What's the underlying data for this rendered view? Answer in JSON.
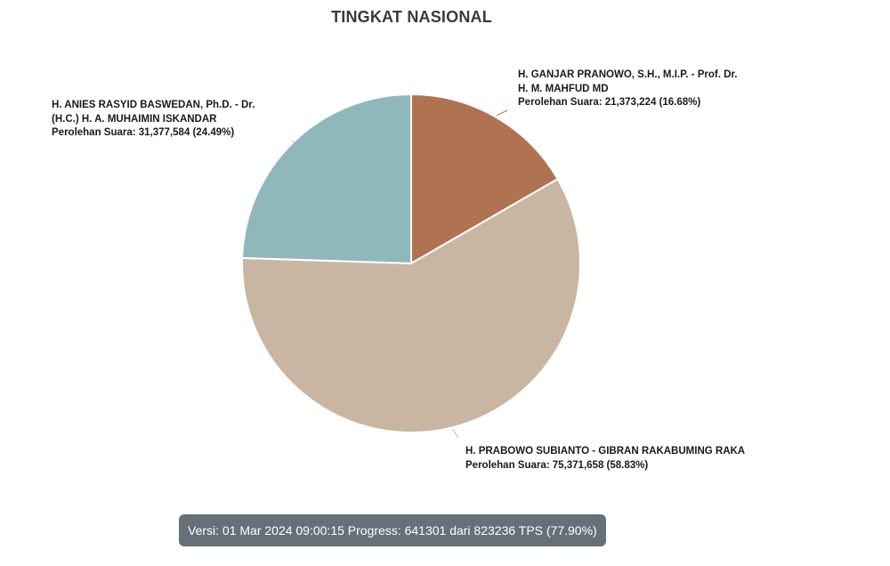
{
  "chart_data": {
    "type": "pie",
    "title": "TINGKAT NASIONAL",
    "vote_label": "Perolehan Suara",
    "slices": [
      {
        "id": "ganjar",
        "name": "H. GANJAR PRANOWO, S.H., M.I.P. - Prof. Dr. H. M. MAHFUD MD",
        "votes": 21373224,
        "votes_text": "21,373,224",
        "percent": 16.68,
        "percent_text": "16.68%",
        "color": "#b07352"
      },
      {
        "id": "prabowo",
        "name": "H. PRABOWO SUBIANTO - GIBRAN RAKABUMING RAKA",
        "votes": 75371658,
        "votes_text": "75,371,658",
        "percent": 58.83,
        "percent_text": "58.83%",
        "color": "#c8b6a3"
      },
      {
        "id": "anies",
        "name": "H. ANIES RASYID BASWEDAN, Ph.D. - Dr. (H.C.) H. A. MUHAIMIN ISKANDAR",
        "votes": 31377584,
        "votes_text": "31,377,584",
        "percent": 24.49,
        "percent_text": "24.49%",
        "color": "#8fb7bc"
      }
    ]
  },
  "labels": {
    "ganjar": {
      "name": "H. GANJAR PRANOWO, S.H., M.I.P. - Prof. Dr. H. M. MAHFUD MD",
      "votes": "Perolehan Suara: 21,373,224 (16.68%)"
    },
    "anies": {
      "name": "H. ANIES RASYID BASWEDAN, Ph.D. - Dr. (H.C.) H. A. MUHAIMIN ISKANDAR",
      "votes": "Perolehan Suara: 31,377,584 (24.49%)"
    },
    "prabowo": {
      "name": "H. PRABOWO SUBIANTO - GIBRAN RAKABUMING RAKA",
      "votes": "Perolehan Suara: 75,371,658 (58.83%)"
    }
  },
  "status": {
    "text": "Versi: 01 Mar 2024 09:00:15 Progress: 641301 dari 823236 TPS (77.90%)"
  }
}
